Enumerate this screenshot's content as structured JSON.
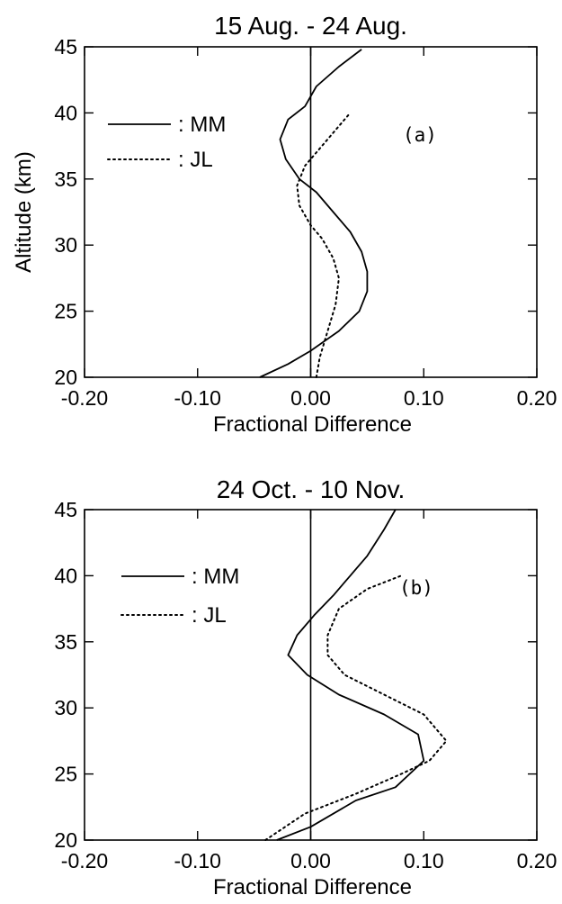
{
  "chart_data": [
    {
      "type": "line",
      "title": "15 Aug. - 24 Aug.",
      "xlabel": "Fractional Difference",
      "ylabel": "Altitude (km)",
      "xlim": [
        -0.2,
        0.2
      ],
      "ylim": [
        20,
        45
      ],
      "xticks": [
        "-0.20",
        "-0.10",
        "0.00",
        "0.10",
        "0.20"
      ],
      "yticks": [
        "20",
        "25",
        "30",
        "35",
        "40",
        "45"
      ],
      "panel_label": "(a)",
      "legend_placement": "top-left",
      "series": [
        {
          "name": ": MM",
          "style": "solid",
          "points": [
            [
              -0.045,
              20
            ],
            [
              -0.02,
              21.0
            ],
            [
              0.0,
              22.0
            ],
            [
              0.025,
              23.5
            ],
            [
              0.043,
              25
            ],
            [
              0.05,
              26.5
            ],
            [
              0.05,
              28
            ],
            [
              0.045,
              29.5
            ],
            [
              0.035,
              31
            ],
            [
              0.02,
              32.5
            ],
            [
              0.005,
              34
            ],
            [
              -0.01,
              35
            ],
            [
              -0.022,
              36.5
            ],
            [
              -0.027,
              38
            ],
            [
              -0.02,
              39.5
            ],
            [
              -0.005,
              40.5
            ],
            [
              0.005,
              42
            ],
            [
              0.025,
              43.5
            ],
            [
              0.045,
              44.8
            ]
          ]
        },
        {
          "name": ": JL",
          "style": "dotted",
          "points": [
            [
              0.005,
              20
            ],
            [
              0.008,
              21.5
            ],
            [
              0.015,
              23.5
            ],
            [
              0.022,
              25.5
            ],
            [
              0.025,
              27.5
            ],
            [
              0.02,
              29
            ],
            [
              0.01,
              30.5
            ],
            [
              0.0,
              31.5
            ],
            [
              -0.01,
              33
            ],
            [
              -0.012,
              34.5
            ],
            [
              -0.005,
              36
            ],
            [
              0.005,
              37
            ],
            [
              0.02,
              38.5
            ],
            [
              0.035,
              40
            ]
          ]
        }
      ]
    },
    {
      "type": "line",
      "title": "24 Oct. - 10 Nov.",
      "xlabel": "Fractional Difference",
      "ylabel": "",
      "xlim": [
        -0.2,
        0.2
      ],
      "ylim": [
        20,
        45
      ],
      "xticks": [
        "-0.20",
        "-0.10",
        "0.00",
        "0.10",
        "0.20"
      ],
      "yticks": [
        "20",
        "25",
        "30",
        "35",
        "40",
        "45"
      ],
      "panel_label": "(b)",
      "legend_placement": "top-left",
      "series": [
        {
          "name": ": MM",
          "style": "solid",
          "points": [
            [
              -0.03,
              20
            ],
            [
              0.0,
              21
            ],
            [
              0.04,
              23
            ],
            [
              0.075,
              24
            ],
            [
              0.1,
              26
            ],
            [
              0.095,
              28
            ],
            [
              0.065,
              29.5
            ],
            [
              0.025,
              31
            ],
            [
              -0.003,
              32.5
            ],
            [
              -0.02,
              34
            ],
            [
              -0.012,
              35.5
            ],
            [
              0.003,
              37
            ],
            [
              0.02,
              38.5
            ],
            [
              0.035,
              40
            ],
            [
              0.05,
              41.5
            ],
            [
              0.065,
              43.5
            ],
            [
              0.075,
              45
            ]
          ]
        },
        {
          "name": ": JL",
          "style": "dotted",
          "points": [
            [
              -0.04,
              20
            ],
            [
              -0.005,
              22
            ],
            [
              0.04,
              23.5
            ],
            [
              0.08,
              25
            ],
            [
              0.105,
              26
            ],
            [
              0.12,
              27.5
            ],
            [
              0.1,
              29.5
            ],
            [
              0.065,
              31
            ],
            [
              0.03,
              32.5
            ],
            [
              0.015,
              34
            ],
            [
              0.015,
              35.5
            ],
            [
              0.025,
              37.5
            ],
            [
              0.05,
              39
            ],
            [
              0.08,
              40
            ]
          ]
        }
      ]
    }
  ]
}
